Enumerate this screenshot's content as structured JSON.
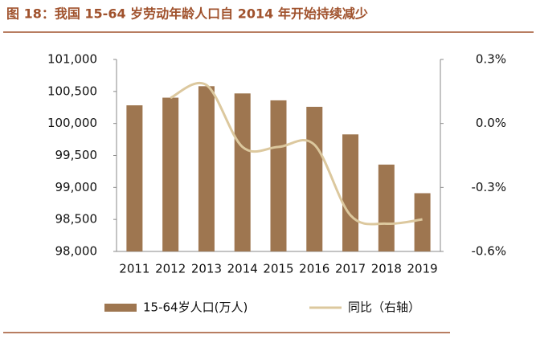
{
  "chart_data": {
    "type": "bar_line",
    "title": "图 18：我国 15-64 岁劳动年龄人口自 2014 年开始持续减少",
    "categories": [
      "2011",
      "2012",
      "2013",
      "2014",
      "2015",
      "2016",
      "2017",
      "2018",
      "2019"
    ],
    "series": [
      {
        "name": "15-64岁人口(万人)",
        "type": "bar",
        "color": "#9e7650",
        "values": [
          100283,
          100403,
          100582,
          100469,
          100361,
          100260,
          99829,
          99357,
          98910
        ]
      },
      {
        "name": "同比（右轴）",
        "type": "line",
        "axis": "y2",
        "color": "#dcc89e",
        "values": [
          null,
          0.12,
          0.18,
          -0.11,
          -0.11,
          -0.1,
          -0.43,
          -0.47,
          -0.45
        ]
      }
    ],
    "ylim": [
      98000,
      101000
    ],
    "yticks": [
      {
        "value": 98000,
        "label": "98,000"
      },
      {
        "value": 98500,
        "label": "98,500"
      },
      {
        "value": 99000,
        "label": "99,000"
      },
      {
        "value": 99500,
        "label": "99,500"
      },
      {
        "value": 100000,
        "label": "100,000"
      },
      {
        "value": 100500,
        "label": "100,500"
      },
      {
        "value": 101000,
        "label": "101,000"
      }
    ],
    "y2lim": [
      -0.6,
      0.3
    ],
    "y2ticks": [
      {
        "value": -0.6,
        "label": "-0.6%"
      },
      {
        "value": -0.3,
        "label": "-0.3%"
      },
      {
        "value": 0,
        "label": "0.0%"
      },
      {
        "value": 0.3,
        "label": "0.3%"
      }
    ]
  }
}
